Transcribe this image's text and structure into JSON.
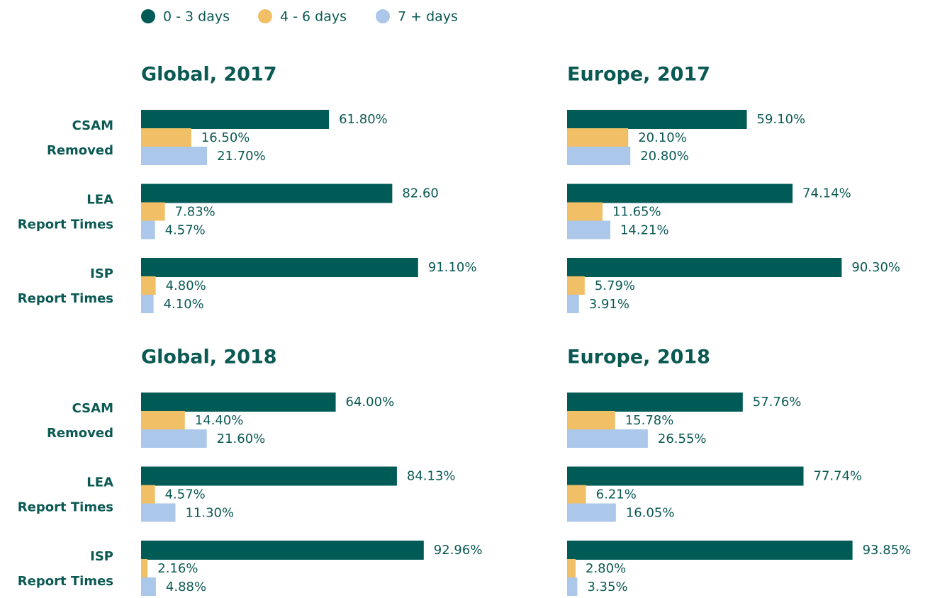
{
  "legend": [
    {
      "name": "0 - 3 days",
      "color": "#005a55"
    },
    {
      "name": "4 - 6 days",
      "color": "#f0bf66"
    },
    {
      "name": "7 + days",
      "color": "#abc8ea"
    }
  ],
  "chart_data": [
    {
      "type": "bar",
      "orientation": "horizontal",
      "title": "Global, 2017",
      "xlim": [
        0,
        100
      ],
      "categories": [
        "CSAM Removed",
        "LEA Report Times",
        "ISP Report Times"
      ],
      "series": [
        {
          "values": [
            61.8,
            82.6,
            91.1
          ],
          "value_labels": [
            "61.80%",
            "82.60",
            "91.10%"
          ]
        },
        {
          "values": [
            16.5,
            7.83,
            4.8
          ],
          "value_labels": [
            "16.50%",
            "7.83%",
            "4.80%"
          ]
        },
        {
          "values": [
            21.7,
            4.57,
            4.1
          ],
          "value_labels": [
            "21.70%",
            "4.57%",
            "4.10%"
          ]
        }
      ]
    },
    {
      "type": "bar",
      "orientation": "horizontal",
      "title": "Europe, 2017",
      "xlim": [
        0,
        100
      ],
      "series": [
        {
          "values": [
            59.1,
            74.14,
            90.3
          ],
          "value_labels": [
            "59.10%",
            "74.14%",
            "90.30%"
          ]
        },
        {
          "values": [
            20.1,
            11.65,
            5.79
          ],
          "value_labels": [
            "20.10%",
            "11.65%",
            "5.79%"
          ]
        },
        {
          "values": [
            20.8,
            14.21,
            3.91
          ],
          "value_labels": [
            "20.80%",
            "14.21%",
            "3.91%"
          ]
        }
      ]
    },
    {
      "type": "bar",
      "orientation": "horizontal",
      "title": "Global, 2018",
      "xlim": [
        0,
        100
      ],
      "categories": [
        "CSAM Removed",
        "LEA Report Times",
        "ISP Report Times"
      ],
      "series": [
        {
          "values": [
            64.0,
            84.13,
            92.96
          ],
          "value_labels": [
            "64.00%",
            "84.13%",
            "92.96%"
          ]
        },
        {
          "values": [
            14.4,
            4.57,
            2.16
          ],
          "value_labels": [
            "14.40%",
            "4.57%",
            "2.16%"
          ]
        },
        {
          "values": [
            21.6,
            11.3,
            4.88
          ],
          "value_labels": [
            "21.60%",
            "11.30%",
            "4.88%"
          ]
        }
      ]
    },
    {
      "type": "bar",
      "orientation": "horizontal",
      "title": "Europe, 2018",
      "xlim": [
        0,
        100
      ],
      "series": [
        {
          "values": [
            57.76,
            77.74,
            93.85
          ],
          "value_labels": [
            "57.76%",
            "77.74%",
            "93.85%"
          ]
        },
        {
          "values": [
            15.78,
            6.21,
            2.8
          ],
          "value_labels": [
            "15.78%",
            "6.21%",
            "2.80%"
          ]
        },
        {
          "values": [
            26.55,
            16.05,
            3.35
          ],
          "value_labels": [
            "26.55%",
            "16.05%",
            "3.35%"
          ]
        }
      ]
    }
  ]
}
